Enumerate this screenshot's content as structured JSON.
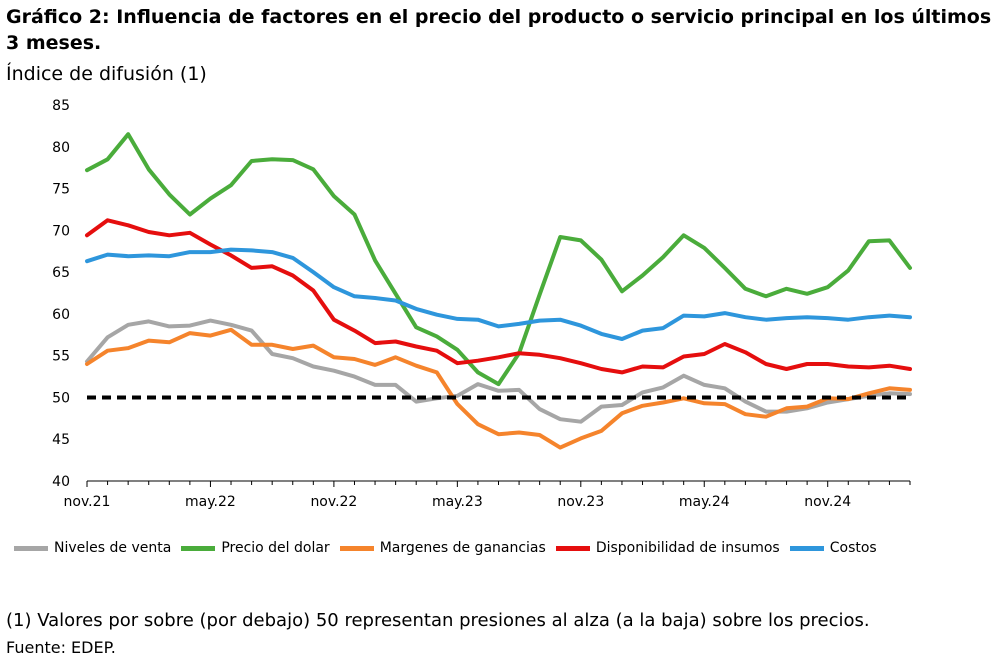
{
  "header": {
    "title": "Gráfico 2: Influencia de factores en el precio del producto o servicio principal en los últimos 3 meses.",
    "subtitle": "Índice de difusión (1)"
  },
  "footer": {
    "note": "(1) Valores por sobre (por debajo) 50 representan presiones al alza (a la baja) sobre los precios.",
    "source": "Fuente: EDEP."
  },
  "chart_data": {
    "type": "line",
    "title": "Gráfico 2: Influencia de factores en el precio del producto o servicio principal en los últimos 3 meses.",
    "ylabel": "Índice de difusión (1)",
    "ylim": [
      40,
      85
    ],
    "yticks": [
      40,
      45,
      50,
      55,
      60,
      65,
      70,
      75,
      80,
      85
    ],
    "x_tick_labels": [
      "nov.21",
      "may.22",
      "nov.22",
      "may.23",
      "nov.23",
      "may.24",
      "nov.24"
    ],
    "x_tick_index": [
      0,
      6,
      12,
      18,
      24,
      30,
      36
    ],
    "n_points": 41,
    "grid": false,
    "legend_position": "bottom",
    "reference_line": {
      "y": 50,
      "style": "dashed",
      "color": "#000000"
    },
    "series": [
      {
        "name": "Niveles de venta",
        "color": "#a6a6a6",
        "values": [
          54.3,
          57.2,
          58.7,
          59.1,
          58.5,
          58.6,
          59.2,
          58.7,
          58.0,
          55.2,
          54.7,
          53.7,
          53.2,
          52.5,
          51.5,
          51.5,
          49.5,
          49.9,
          50.2,
          51.6,
          50.8,
          50.9,
          48.6,
          47.4,
          47.1,
          48.9,
          49.1,
          50.6,
          51.2,
          52.6,
          51.5,
          51.1,
          49.5,
          48.3,
          48.3,
          48.7,
          49.4,
          49.8,
          50.2,
          50.5,
          50.4
        ]
      },
      {
        "name": "Precio del dolar",
        "color": "#4aac3b",
        "values": [
          77.2,
          78.5,
          81.5,
          77.3,
          74.3,
          71.9,
          73.8,
          75.4,
          78.3,
          78.5,
          78.4,
          77.3,
          74.1,
          71.9,
          66.4,
          62.4,
          58.4,
          57.3,
          55.7,
          53.0,
          51.6,
          55.3,
          62.3,
          69.2,
          68.8,
          66.5,
          62.7,
          64.6,
          66.8,
          69.4,
          67.9,
          65.5,
          63.0,
          62.1,
          63.0,
          62.4,
          63.2,
          65.2,
          68.7,
          68.8,
          65.5
        ]
      },
      {
        "name": "Margenes de ganancias",
        "color": "#f5842c",
        "values": [
          54.0,
          55.6,
          55.9,
          56.8,
          56.6,
          57.7,
          57.4,
          58.1,
          56.3,
          56.3,
          55.8,
          56.2,
          54.8,
          54.6,
          53.9,
          54.8,
          53.8,
          53.0,
          49.2,
          46.8,
          45.6,
          45.8,
          45.5,
          44.0,
          45.1,
          46.0,
          48.1,
          49.0,
          49.4,
          49.9,
          49.3,
          49.2,
          48.0,
          47.7,
          48.7,
          48.9,
          49.9,
          49.8,
          50.5,
          51.1,
          50.9
        ]
      },
      {
        "name": "Disponibilidad de insumos",
        "color": "#e50e0e",
        "values": [
          69.4,
          71.2,
          70.6,
          69.8,
          69.4,
          69.7,
          68.3,
          67.0,
          65.5,
          65.7,
          64.6,
          62.8,
          59.3,
          58.0,
          56.5,
          56.7,
          56.1,
          55.6,
          54.1,
          54.4,
          54.8,
          55.3,
          55.1,
          54.7,
          54.1,
          53.4,
          53.0,
          53.7,
          53.6,
          54.9,
          55.2,
          56.4,
          55.4,
          54.0,
          53.4,
          54.0,
          54.0,
          53.7,
          53.6,
          53.8,
          53.4
        ]
      },
      {
        "name": "Costos",
        "color": "#2e96dc",
        "values": [
          66.3,
          67.1,
          66.9,
          67.0,
          66.9,
          67.4,
          67.4,
          67.7,
          67.6,
          67.4,
          66.7,
          65.0,
          63.2,
          62.1,
          61.9,
          61.6,
          60.6,
          59.9,
          59.4,
          59.3,
          58.5,
          58.8,
          59.2,
          59.3,
          58.6,
          57.6,
          57.0,
          58.0,
          58.3,
          59.8,
          59.7,
          60.1,
          59.6,
          59.3,
          59.5,
          59.6,
          59.5,
          59.3,
          59.6,
          59.8,
          59.6
        ]
      }
    ]
  }
}
